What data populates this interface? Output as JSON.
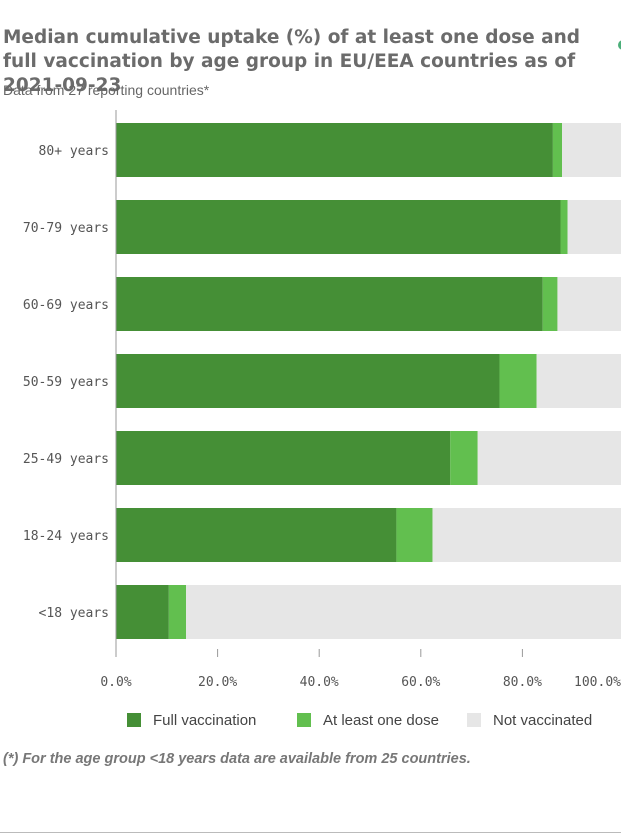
{
  "header": {
    "title": "Median cumulative uptake (%) of at least one dose and full vaccination by age group in EU/EEA countries as of 2021-09-23",
    "subtitle": "Data from 27 reporting countries*"
  },
  "footnote": "(*) For the age group <18 years data are available from 25 countries.",
  "colors": {
    "full": "#458f36",
    "one_dose": "#62bf4f",
    "not_vaccinated": "#e6e6e6",
    "accent_dot": "#4caf7a"
  },
  "chart_data": {
    "type": "bar",
    "orientation": "horizontal",
    "stacked": true,
    "categories": [
      "80+ years",
      "70-79 years",
      "60-69 years",
      "50-59 years",
      "25-49 years",
      "18-24 years",
      "<18 years"
    ],
    "series": [
      {
        "name": "Full vaccination",
        "color": "#458f36",
        "values": [
          86.0,
          87.5,
          84.0,
          75.5,
          65.8,
          55.2,
          10.4
        ]
      },
      {
        "name": "At least one dose",
        "color": "#62bf4f",
        "values": [
          1.8,
          1.4,
          2.9,
          7.3,
          5.4,
          7.1,
          3.4
        ]
      },
      {
        "name": "Not vaccinated",
        "color": "#e6e6e6",
        "values": [
          12.2,
          11.1,
          13.1,
          17.2,
          28.8,
          37.7,
          86.2
        ]
      }
    ],
    "xlim": [
      0,
      100
    ],
    "xticks": [
      "0.0%",
      "20.0%",
      "40.0%",
      "60.0%",
      "80.0%",
      "100.0%"
    ],
    "legend_position": "bottom",
    "grid": false
  }
}
